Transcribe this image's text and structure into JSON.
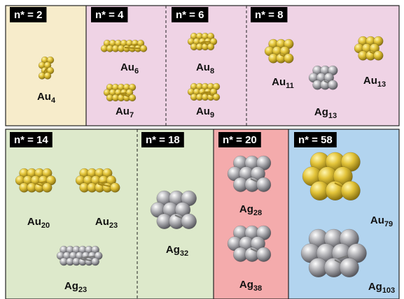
{
  "panels": [
    {
      "tag": "n* = 2",
      "clusters": [
        {
          "element": "Au",
          "subscript": "4"
        }
      ]
    },
    {
      "tag": "n* = 4",
      "clusters": [
        {
          "element": "Au",
          "subscript": "6"
        },
        {
          "element": "Au",
          "subscript": "7"
        }
      ]
    },
    {
      "tag": "n* = 6",
      "clusters": [
        {
          "element": "Au",
          "subscript": "8"
        },
        {
          "element": "Au",
          "subscript": "9"
        }
      ]
    },
    {
      "tag": "n* = 8",
      "clusters": [
        {
          "element": "Au",
          "subscript": "11"
        },
        {
          "element": "Au",
          "subscript": "13"
        },
        {
          "element": "Ag",
          "subscript": "13"
        }
      ]
    },
    {
      "tag": "n* = 14",
      "clusters": [
        {
          "element": "Au",
          "subscript": "20"
        },
        {
          "element": "Au",
          "subscript": "23"
        },
        {
          "element": "Ag",
          "subscript": "23"
        }
      ]
    },
    {
      "tag": "n* = 18",
      "clusters": [
        {
          "element": "Ag",
          "subscript": "32"
        }
      ]
    },
    {
      "tag": "n* = 20",
      "clusters": [
        {
          "element": "Ag",
          "subscript": "28"
        },
        {
          "element": "Ag",
          "subscript": "38"
        }
      ]
    },
    {
      "tag": "n* = 58",
      "clusters": [
        {
          "element": "Au",
          "subscript": "79"
        },
        {
          "element": "Ag",
          "subscript": "103"
        }
      ]
    }
  ]
}
